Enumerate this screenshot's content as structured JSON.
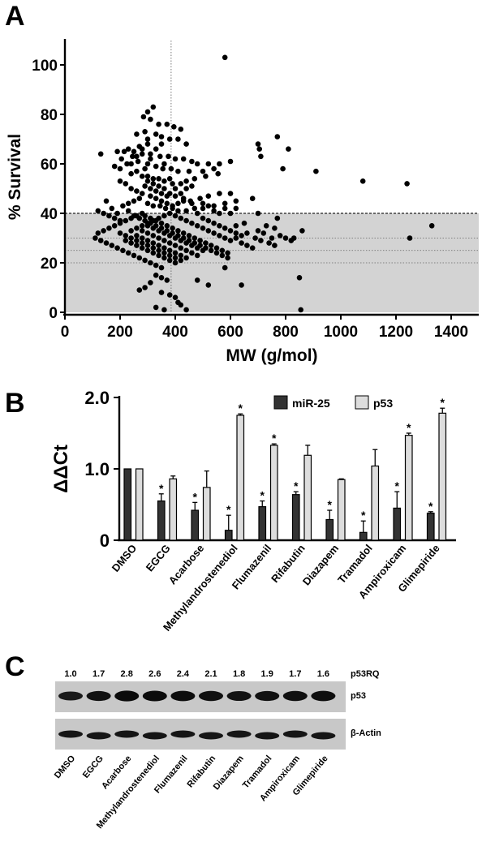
{
  "panels": {
    "a": "A",
    "b": "B",
    "c": "C"
  },
  "chart_data": [
    {
      "type": "scatter",
      "panel": "A",
      "xlabel": "MW (g/mol)",
      "ylabel": "% Survival",
      "xlim": [
        0,
        1500
      ],
      "ylim": [
        0,
        108
      ],
      "xticks": [
        0,
        200,
        400,
        600,
        800,
        1000,
        1200,
        1400
      ],
      "yticks": [
        0,
        20,
        40,
        60,
        80,
        100
      ],
      "shaded_band": [
        0,
        40
      ],
      "reference_lines": {
        "vertical_x": 385,
        "horizontal_y": [
          20,
          25,
          30,
          40
        ]
      },
      "points": [
        [
          580,
          103
        ],
        [
          320,
          83
        ],
        [
          300,
          81
        ],
        [
          285,
          79
        ],
        [
          310,
          78
        ],
        [
          340,
          76
        ],
        [
          370,
          76
        ],
        [
          395,
          75
        ],
        [
          420,
          74
        ],
        [
          290,
          73
        ],
        [
          260,
          72
        ],
        [
          330,
          72
        ],
        [
          350,
          71
        ],
        [
          380,
          70
        ],
        [
          410,
          70
        ],
        [
          440,
          68
        ],
        [
          300,
          68
        ],
        [
          270,
          67
        ],
        [
          230,
          66
        ],
        [
          215,
          65
        ],
        [
          250,
          65
        ],
        [
          280,
          64
        ],
        [
          310,
          64
        ],
        [
          345,
          63
        ],
        [
          375,
          63
        ],
        [
          400,
          62
        ],
        [
          430,
          62
        ],
        [
          460,
          61
        ],
        [
          480,
          60
        ],
        [
          520,
          60
        ],
        [
          560,
          60
        ],
        [
          600,
          61
        ],
        [
          300,
          60
        ],
        [
          330,
          59
        ],
        [
          355,
          58
        ],
        [
          385,
          58
        ],
        [
          410,
          57
        ],
        [
          450,
          57
        ],
        [
          500,
          57
        ],
        [
          540,
          58
        ],
        [
          260,
          57
        ],
        [
          240,
          56
        ],
        [
          280,
          55
        ],
        [
          300,
          55
        ],
        [
          320,
          54
        ],
        [
          340,
          54
        ],
        [
          360,
          53
        ],
        [
          390,
          52
        ],
        [
          420,
          52
        ],
        [
          440,
          53
        ],
        [
          470,
          54
        ],
        [
          510,
          55
        ],
        [
          555,
          56
        ],
        [
          200,
          58
        ],
        [
          180,
          59
        ],
        [
          290,
          51
        ],
        [
          310,
          50
        ],
        [
          330,
          49
        ],
        [
          350,
          48
        ],
        [
          370,
          47
        ],
        [
          400,
          47
        ],
        [
          430,
          46
        ],
        [
          455,
          45
        ],
        [
          490,
          46
        ],
        [
          520,
          47
        ],
        [
          560,
          48
        ],
        [
          600,
          48
        ],
        [
          270,
          46
        ],
        [
          250,
          45
        ],
        [
          230,
          44
        ],
        [
          300,
          44
        ],
        [
          320,
          43
        ],
        [
          345,
          43
        ],
        [
          365,
          42
        ],
        [
          390,
          42
        ],
        [
          410,
          41
        ],
        [
          440,
          41
        ],
        [
          470,
          42
        ],
        [
          500,
          42
        ],
        [
          540,
          43
        ],
        [
          580,
          44
        ],
        [
          620,
          45
        ],
        [
          680,
          46
        ],
        [
          280,
          40
        ],
        [
          260,
          39
        ],
        [
          240,
          38
        ],
        [
          220,
          37
        ],
        [
          200,
          36
        ],
        [
          180,
          35
        ],
        [
          160,
          34
        ],
        [
          140,
          33
        ],
        [
          120,
          32
        ],
        [
          110,
          30
        ],
        [
          130,
          29
        ],
        [
          150,
          28
        ],
        [
          170,
          27
        ],
        [
          190,
          26
        ],
        [
          210,
          25
        ],
        [
          230,
          24
        ],
        [
          250,
          23
        ],
        [
          270,
          22
        ],
        [
          290,
          21
        ],
        [
          310,
          20
        ],
        [
          330,
          19
        ],
        [
          350,
          18
        ],
        [
          290,
          39
        ],
        [
          310,
          38
        ],
        [
          330,
          37
        ],
        [
          350,
          36
        ],
        [
          370,
          35
        ],
        [
          390,
          34
        ],
        [
          410,
          33
        ],
        [
          430,
          32
        ],
        [
          450,
          31
        ],
        [
          470,
          30
        ],
        [
          490,
          29
        ],
        [
          510,
          28
        ],
        [
          530,
          27
        ],
        [
          550,
          26
        ],
        [
          570,
          25
        ],
        [
          590,
          24
        ],
        [
          300,
          35
        ],
        [
          320,
          34
        ],
        [
          340,
          33
        ],
        [
          360,
          32
        ],
        [
          380,
          31
        ],
        [
          400,
          30
        ],
        [
          420,
          29
        ],
        [
          440,
          28
        ],
        [
          460,
          27
        ],
        [
          480,
          26
        ],
        [
          500,
          25
        ],
        [
          280,
          33
        ],
        [
          300,
          32
        ],
        [
          320,
          31
        ],
        [
          340,
          30
        ],
        [
          360,
          29
        ],
        [
          380,
          28
        ],
        [
          400,
          27
        ],
        [
          420,
          26
        ],
        [
          440,
          25
        ],
        [
          460,
          24
        ],
        [
          480,
          23
        ],
        [
          260,
          31
        ],
        [
          280,
          30
        ],
        [
          300,
          29
        ],
        [
          320,
          28
        ],
        [
          340,
          27
        ],
        [
          360,
          26
        ],
        [
          380,
          25
        ],
        [
          400,
          24
        ],
        [
          420,
          23
        ],
        [
          440,
          22
        ],
        [
          240,
          30
        ],
        [
          260,
          29
        ],
        [
          280,
          28
        ],
        [
          300,
          27
        ],
        [
          320,
          26
        ],
        [
          340,
          25
        ],
        [
          360,
          24
        ],
        [
          380,
          23
        ],
        [
          400,
          22
        ],
        [
          420,
          21
        ],
        [
          220,
          29
        ],
        [
          240,
          28
        ],
        [
          260,
          27
        ],
        [
          280,
          26
        ],
        [
          300,
          25
        ],
        [
          320,
          24
        ],
        [
          340,
          23
        ],
        [
          360,
          22
        ],
        [
          380,
          21
        ],
        [
          400,
          20
        ],
        [
          200,
          32
        ],
        [
          220,
          31
        ],
        [
          240,
          33
        ],
        [
          260,
          34
        ],
        [
          280,
          35
        ],
        [
          300,
          36
        ],
        [
          320,
          37
        ],
        [
          340,
          38
        ],
        [
          360,
          39
        ],
        [
          380,
          40
        ],
        [
          400,
          39
        ],
        [
          420,
          38
        ],
        [
          440,
          37
        ],
        [
          460,
          36
        ],
        [
          480,
          35
        ],
        [
          500,
          34
        ],
        [
          520,
          33
        ],
        [
          540,
          32
        ],
        [
          560,
          31
        ],
        [
          580,
          30
        ],
        [
          600,
          29
        ],
        [
          620,
          30
        ],
        [
          640,
          31
        ],
        [
          660,
          32
        ],
        [
          620,
          35
        ],
        [
          650,
          36
        ],
        [
          700,
          33
        ],
        [
          720,
          32
        ],
        [
          750,
          30
        ],
        [
          780,
          31
        ],
        [
          800,
          30
        ],
        [
          820,
          29
        ],
        [
          760,
          34
        ],
        [
          730,
          35
        ],
        [
          690,
          30
        ],
        [
          710,
          29
        ],
        [
          740,
          28
        ],
        [
          760,
          27
        ],
        [
          120,
          41
        ],
        [
          140,
          40
        ],
        [
          160,
          39
        ],
        [
          180,
          38
        ],
        [
          200,
          37
        ],
        [
          330,
          15
        ],
        [
          350,
          14
        ],
        [
          370,
          13
        ],
        [
          310,
          12
        ],
        [
          290,
          10
        ],
        [
          270,
          9
        ],
        [
          350,
          8
        ],
        [
          380,
          7
        ],
        [
          400,
          6
        ],
        [
          410,
          4
        ],
        [
          420,
          3
        ],
        [
          330,
          2
        ],
        [
          360,
          1
        ],
        [
          440,
          1
        ],
        [
          480,
          13
        ],
        [
          520,
          11
        ],
        [
          580,
          18
        ],
        [
          640,
          11
        ],
        [
          850,
          14
        ],
        [
          855,
          1
        ],
        [
          700,
          68
        ],
        [
          705,
          66
        ],
        [
          710,
          63
        ],
        [
          770,
          71
        ],
        [
          790,
          58
        ],
        [
          810,
          66
        ],
        [
          860,
          33
        ],
        [
          910,
          57
        ],
        [
          1080,
          53
        ],
        [
          1240,
          52
        ],
        [
          1250,
          30
        ],
        [
          1330,
          35
        ],
        [
          700,
          40
        ],
        [
          770,
          38
        ],
        [
          830,
          30
        ],
        [
          190,
          65
        ],
        [
          205,
          62
        ],
        [
          225,
          60
        ],
        [
          245,
          63
        ],
        [
          265,
          61
        ],
        [
          130,
          64
        ],
        [
          150,
          45
        ],
        [
          170,
          42
        ],
        [
          190,
          40
        ],
        [
          210,
          43
        ],
        [
          230,
          41
        ],
        [
          250,
          39
        ],
        [
          270,
          38
        ],
        [
          290,
          37
        ],
        [
          310,
          36
        ],
        [
          330,
          35
        ],
        [
          350,
          34
        ],
        [
          370,
          33
        ],
        [
          390,
          32
        ],
        [
          410,
          31
        ],
        [
          430,
          30
        ],
        [
          450,
          29
        ],
        [
          470,
          28
        ],
        [
          490,
          27
        ],
        [
          510,
          26
        ],
        [
          530,
          25
        ],
        [
          550,
          24
        ],
        [
          570,
          23
        ],
        [
          590,
          22
        ],
        [
          310,
          47
        ],
        [
          330,
          46
        ],
        [
          350,
          45
        ],
        [
          370,
          44
        ],
        [
          390,
          43
        ],
        [
          410,
          44
        ],
        [
          430,
          45
        ],
        [
          290,
          58
        ],
        [
          310,
          62
        ],
        [
          330,
          66
        ],
        [
          350,
          68
        ],
        [
          300,
          70
        ],
        [
          280,
          66
        ],
        [
          260,
          63
        ],
        [
          240,
          60
        ],
        [
          360,
          60
        ],
        [
          380,
          54
        ],
        [
          400,
          50
        ],
        [
          420,
          48
        ],
        [
          440,
          50
        ],
        [
          460,
          51
        ],
        [
          380,
          48
        ],
        [
          360,
          50
        ],
        [
          340,
          51
        ],
        [
          320,
          52
        ],
        [
          300,
          53
        ],
        [
          280,
          48
        ],
        [
          260,
          49
        ],
        [
          240,
          50
        ],
        [
          220,
          52
        ],
        [
          200,
          53
        ],
        [
          460,
          44
        ],
        [
          480,
          40
        ],
        [
          500,
          38
        ],
        [
          520,
          37
        ],
        [
          540,
          36
        ],
        [
          560,
          35
        ],
        [
          580,
          34
        ],
        [
          600,
          33
        ],
        [
          620,
          32
        ],
        [
          640,
          28
        ],
        [
          660,
          27
        ],
        [
          680,
          26
        ],
        [
          600,
          40
        ],
        [
          620,
          42
        ],
        [
          580,
          42
        ],
        [
          560,
          40
        ],
        [
          540,
          41
        ],
        [
          520,
          43
        ],
        [
          500,
          44
        ]
      ]
    },
    {
      "type": "bar",
      "panel": "B",
      "ylabel": "ΔΔCt",
      "ylim": [
        0,
        2.0
      ],
      "yticks": [
        "0",
        "1.0",
        "2.0"
      ],
      "categories": [
        "DMSO",
        "EGCG",
        "Acarbose",
        "Methylandrostenediol",
        "Flumazenil",
        "Rifabutin",
        "Diazapem",
        "Tramadol",
        "Ampiroxicam",
        "Glimepiride"
      ],
      "series": [
        {
          "name": "miR-25",
          "color": "#333333",
          "values": [
            1.0,
            0.55,
            0.42,
            0.14,
            0.47,
            0.64,
            0.29,
            0.11,
            0.45,
            0.38
          ],
          "errors": [
            0.0,
            0.1,
            0.11,
            0.21,
            0.08,
            0.04,
            0.13,
            0.16,
            0.23,
            0.02
          ],
          "star": [
            false,
            true,
            true,
            true,
            true,
            true,
            true,
            true,
            true,
            true
          ]
        },
        {
          "name": "p53",
          "color": "#dddddd",
          "values": [
            1.0,
            0.86,
            0.74,
            1.75,
            1.33,
            1.19,
            0.85,
            1.04,
            1.47,
            1.78
          ],
          "errors": [
            0.0,
            0.04,
            0.23,
            0.02,
            0.02,
            0.14,
            0.01,
            0.23,
            0.03,
            0.07
          ],
          "star": [
            false,
            false,
            false,
            true,
            true,
            false,
            false,
            false,
            true,
            true
          ]
        }
      ],
      "significance_marker": "*"
    }
  ],
  "blot": {
    "p53rq_label": "p53RQ",
    "p53rq_values": [
      "1.0",
      "1.7",
      "2.8",
      "2.6",
      "2.4",
      "2.1",
      "1.8",
      "1.9",
      "1.7",
      "1.6"
    ],
    "band_intensity_p53": [
      0.62,
      0.78,
      0.9,
      0.88,
      0.85,
      0.8,
      0.76,
      0.78,
      0.8,
      0.84
    ],
    "band_intensity_actin": [
      0.9,
      0.9,
      0.9,
      0.88,
      0.9,
      0.88,
      0.88,
      0.88,
      0.88,
      0.88
    ],
    "row_labels": [
      "p53",
      "β-Actin"
    ],
    "lane_labels": [
      "DMSO",
      "EGCG",
      "Acarbose",
      "Methylandrostenediol",
      "Flumazenil",
      "Rifabutin",
      "Diazapem",
      "Tramadol",
      "Ampiroxicam",
      "Glimepiride"
    ]
  }
}
